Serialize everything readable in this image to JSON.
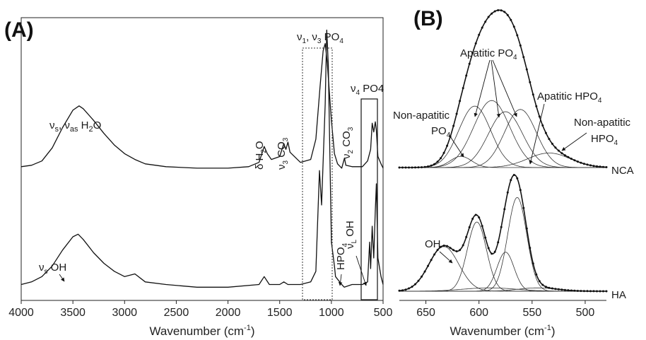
{
  "panels": {
    "a": "(A)",
    "b": "(B)"
  },
  "chart_data": [
    {
      "type": "line",
      "panel": "(A)",
      "xlabel": "Wavenumber (cm-1)",
      "xlim": [
        4000,
        500
      ],
      "x_reversed": true,
      "x_ticks": [
        4000,
        3500,
        3000,
        2500,
        2000,
        1500,
        1000,
        500
      ],
      "y_ticks_shown": false,
      "series": [
        {
          "offset": 0,
          "points": [
            [
              4000,
              0.02
            ],
            [
              3900,
              0.03
            ],
            [
              3800,
              0.05
            ],
            [
              3700,
              0.09
            ],
            [
              3600,
              0.15
            ],
            [
              3500,
              0.2
            ],
            [
              3450,
              0.21
            ],
            [
              3400,
              0.19
            ],
            [
              3300,
              0.14
            ],
            [
              3200,
              0.1
            ],
            [
              3100,
              0.07
            ],
            [
              3000,
              0.05
            ],
            [
              2900,
              0.06
            ],
            [
              2800,
              0.03
            ],
            [
              2600,
              0.02
            ],
            [
              2300,
              0.01
            ],
            [
              2000,
              0.01
            ],
            [
              1700,
              0.02
            ],
            [
              1650,
              0.05
            ],
            [
              1600,
              0.02
            ],
            [
              1500,
              0.02
            ],
            [
              1460,
              0.03
            ],
            [
              1420,
              0.02
            ],
            [
              1300,
              0.02
            ],
            [
              1200,
              0.03
            ],
            [
              1150,
              0.07
            ],
            [
              1115,
              0.45
            ],
            [
              1095,
              0.32
            ],
            [
              1060,
              0.7
            ],
            [
              1045,
              0.98
            ],
            [
              1030,
              0.85
            ],
            [
              1000,
              0.18
            ],
            [
              970,
              0.09
            ],
            [
              960,
              0.05
            ],
            [
              900,
              0.02
            ],
            [
              875,
              0.01
            ],
            [
              800,
              0.02
            ],
            [
              700,
              0.02
            ],
            [
              650,
              0.03
            ],
            [
              630,
              0.18
            ],
            [
              620,
              0.08
            ],
            [
              605,
              0.24
            ],
            [
              590,
              0.12
            ],
            [
              575,
              0.3
            ],
            [
              565,
              0.4
            ],
            [
              550,
              0.12
            ],
            [
              520,
              0.05
            ],
            [
              500,
              0.02
            ]
          ]
        },
        {
          "offset": 1,
          "points": [
            [
              4000,
              0.03
            ],
            [
              3900,
              0.04
            ],
            [
              3800,
              0.07
            ],
            [
              3700,
              0.16
            ],
            [
              3600,
              0.3
            ],
            [
              3500,
              0.42
            ],
            [
              3440,
              0.45
            ],
            [
              3400,
              0.43
            ],
            [
              3300,
              0.35
            ],
            [
              3200,
              0.26
            ],
            [
              3100,
              0.18
            ],
            [
              3000,
              0.12
            ],
            [
              2900,
              0.08
            ],
            [
              2800,
              0.05
            ],
            [
              2600,
              0.03
            ],
            [
              2300,
              0.02
            ],
            [
              2000,
              0.02
            ],
            [
              1800,
              0.03
            ],
            [
              1700,
              0.06
            ],
            [
              1650,
              0.17
            ],
            [
              1620,
              0.12
            ],
            [
              1580,
              0.08
            ],
            [
              1500,
              0.1
            ],
            [
              1460,
              0.19
            ],
            [
              1440,
              0.15
            ],
            [
              1420,
              0.2
            ],
            [
              1400,
              0.13
            ],
            [
              1300,
              0.06
            ],
            [
              1200,
              0.08
            ],
            [
              1150,
              0.22
            ],
            [
              1110,
              0.58
            ],
            [
              1080,
              0.83
            ],
            [
              1060,
              0.88
            ],
            [
              1040,
              0.75
            ],
            [
              1000,
              0.35
            ],
            [
              970,
              0.12
            ],
            [
              940,
              0.05
            ],
            [
              900,
              0.02
            ],
            [
              873,
              0.09
            ],
            [
              860,
              0.04
            ],
            [
              800,
              0.03
            ],
            [
              700,
              0.03
            ],
            [
              650,
              0.07
            ],
            [
              620,
              0.15
            ],
            [
              605,
              0.33
            ],
            [
              590,
              0.27
            ],
            [
              575,
              0.34
            ],
            [
              565,
              0.28
            ],
            [
              550,
              0.1
            ],
            [
              520,
              0.05
            ],
            [
              500,
              0.02
            ]
          ]
        }
      ],
      "annotations": {
        "water": "νs, νas H2O",
        "bend_water": "δ H2O",
        "v3_co3": "ν3 CO3",
        "v2_co3": "ν2 CO3",
        "v1v3_po4": "ν1, ν3 PO4",
        "v4_po4": "ν4 PO4",
        "oh_stretch": "νs OH",
        "hpo4": "HPO4",
        "libration_oh": "νL OH"
      }
    },
    {
      "type": "line",
      "panel": "(B)",
      "xlabel": "Wavenumber (cm-1)",
      "xlim": [
        675,
        480
      ],
      "x_reversed": true,
      "x_ticks": [
        650,
        600,
        550,
        500
      ],
      "y_ticks_shown": false,
      "series": [
        {
          "name": "NCA",
          "offset": 1,
          "bands": [
            {
              "center": 617,
              "amplitude": 0.1,
              "width": 10
            },
            {
              "center": 604,
              "amplitude": 0.55,
              "width": 15
            },
            {
              "center": 588,
              "amplitude": 0.6,
              "width": 17
            },
            {
              "center": 575,
              "amplitude": 0.5,
              "width": 16
            },
            {
              "center": 561,
              "amplitude": 0.52,
              "width": 15
            },
            {
              "center": 534,
              "amplitude": 0.13,
              "width": 20
            }
          ]
        },
        {
          "name": "HA",
          "offset": 0,
          "bands": [
            {
              "center": 633,
              "amplitude": 0.4,
              "width": 14
            },
            {
              "center": 602,
              "amplitude": 0.62,
              "width": 9
            },
            {
              "center": 575,
              "amplitude": 0.35,
              "width": 8
            },
            {
              "center": 564,
              "amplitude": 0.84,
              "width": 9
            },
            {
              "center": 545,
              "amplitude": 0.03,
              "width": 18
            },
            {
              "center": 590,
              "amplitude": 0.03,
              "width": 25
            }
          ]
        }
      ],
      "annotations": {
        "apatitic_po4": "Apatitic PO4",
        "apatitic_hpo4": "Apatitic HPO4",
        "non_apatitic_po4_l1": "Non-apatitic",
        "non_apatitic_po4_l2": "PO4",
        "non_apatitic_hpo4_l1": "Non-apatitic",
        "non_apatitic_hpo4_l2": "HPO4",
        "oh": "OH"
      }
    }
  ]
}
